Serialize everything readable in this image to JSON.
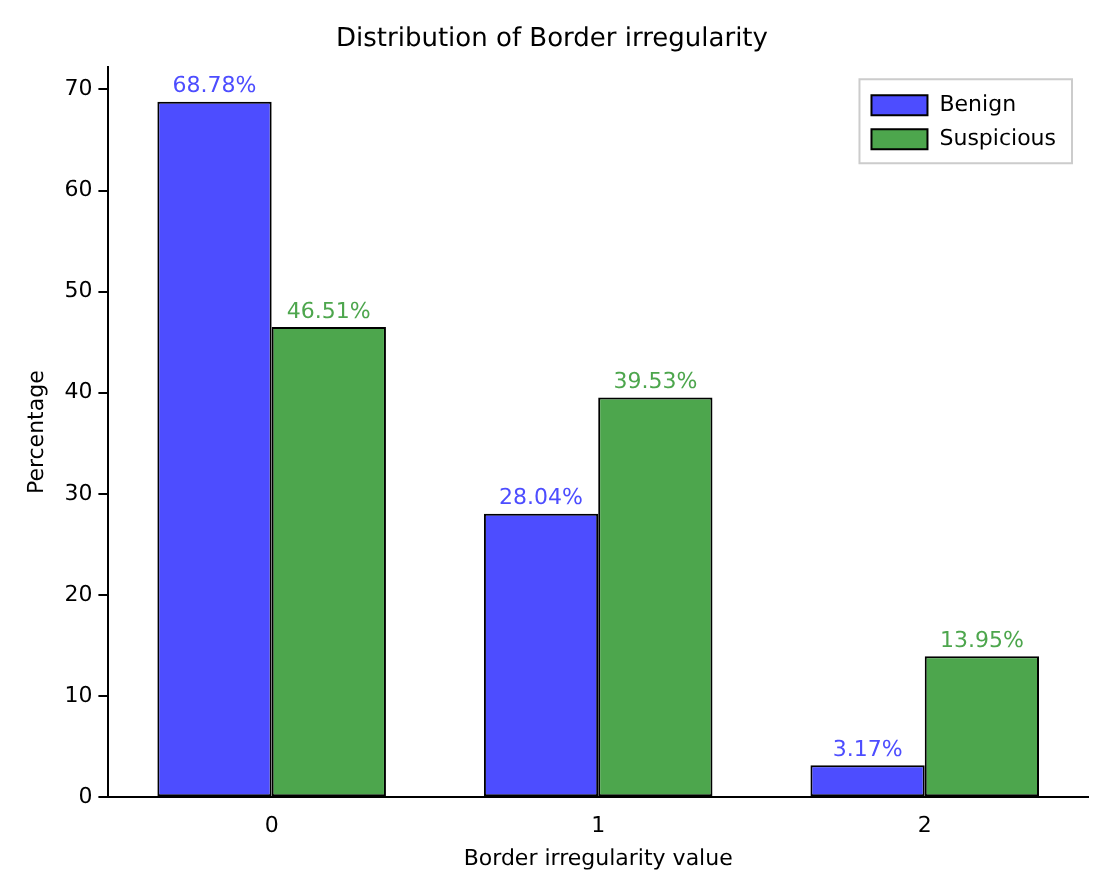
{
  "chart_data": {
    "type": "bar",
    "title": "Distribution of Border irregularity",
    "xlabel": "Border irregularity value",
    "ylabel": "Percentage",
    "categories": [
      "0",
      "1",
      "2"
    ],
    "series": [
      {
        "name": "Benign",
        "color": "#4d4dff",
        "values": [
          68.78,
          28.04,
          3.17
        ],
        "value_labels": [
          "68.78%",
          "28.04%",
          "3.17%"
        ]
      },
      {
        "name": "Suspicious",
        "color": "#4da64d",
        "values": [
          46.51,
          39.53,
          13.95
        ],
        "value_labels": [
          "46.51%",
          "39.53%",
          "13.95%"
        ]
      }
    ],
    "ylim": [
      0,
      72.2
    ],
    "yticks": [
      0,
      10,
      20,
      30,
      40,
      50,
      60,
      70
    ],
    "grid": false,
    "legend": "top right"
  }
}
